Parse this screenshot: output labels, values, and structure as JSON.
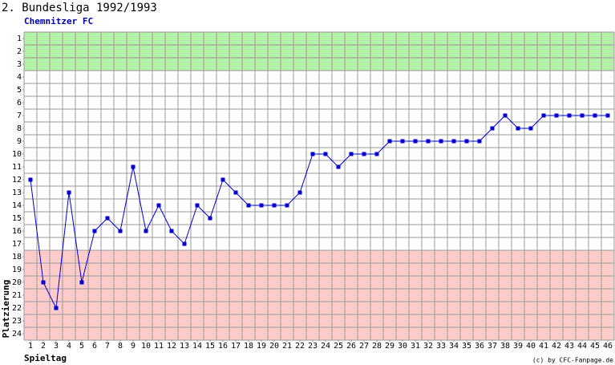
{
  "chart_data": {
    "type": "line",
    "title": "2. Bundesliga 1992/1993",
    "subtitle": "Chemnitzer FC",
    "ylabel": "Platzierung",
    "xlabel": "Spieltag",
    "credit": "(c) by CFC-Fanpage.de",
    "x": [
      1,
      2,
      3,
      4,
      5,
      6,
      7,
      8,
      9,
      10,
      11,
      12,
      13,
      14,
      15,
      16,
      17,
      18,
      19,
      20,
      21,
      22,
      23,
      24,
      25,
      26,
      27,
      28,
      29,
      30,
      31,
      32,
      33,
      34,
      35,
      36,
      37,
      38,
      39,
      40,
      41,
      42,
      43,
      44,
      45,
      46
    ],
    "xlim": [
      0.5,
      46.5
    ],
    "xticks": [
      1,
      2,
      3,
      4,
      5,
      6,
      7,
      8,
      9,
      10,
      11,
      12,
      13,
      14,
      15,
      16,
      17,
      18,
      19,
      20,
      21,
      22,
      23,
      24,
      25,
      26,
      27,
      28,
      29,
      30,
      31,
      32,
      33,
      34,
      35,
      36,
      37,
      38,
      39,
      40,
      41,
      42,
      43,
      44,
      45,
      46
    ],
    "ylim": [
      24.5,
      0.5
    ],
    "yticks": [
      1,
      2,
      3,
      4,
      5,
      6,
      7,
      8,
      9,
      10,
      11,
      12,
      13,
      14,
      15,
      16,
      17,
      18,
      19,
      20,
      21,
      22,
      23,
      24
    ],
    "series": [
      {
        "name": "Chemnitzer FC",
        "color": "#0000cc",
        "values": [
          12,
          20,
          22,
          13,
          20,
          16,
          15,
          16,
          11,
          16,
          14,
          16,
          17,
          14,
          15,
          12,
          13,
          14,
          14,
          14,
          14,
          13,
          10,
          10,
          11,
          10,
          10,
          10,
          9,
          9,
          9,
          9,
          9,
          9,
          9,
          9,
          8,
          7,
          8,
          8,
          7,
          7,
          7,
          7,
          7,
          7
        ]
      }
    ],
    "zones": [
      {
        "from": 1,
        "to": 3,
        "color": "#b3f0a8"
      },
      {
        "from": 18,
        "to": 24,
        "color": "#ffcccc"
      }
    ],
    "grid": true
  }
}
